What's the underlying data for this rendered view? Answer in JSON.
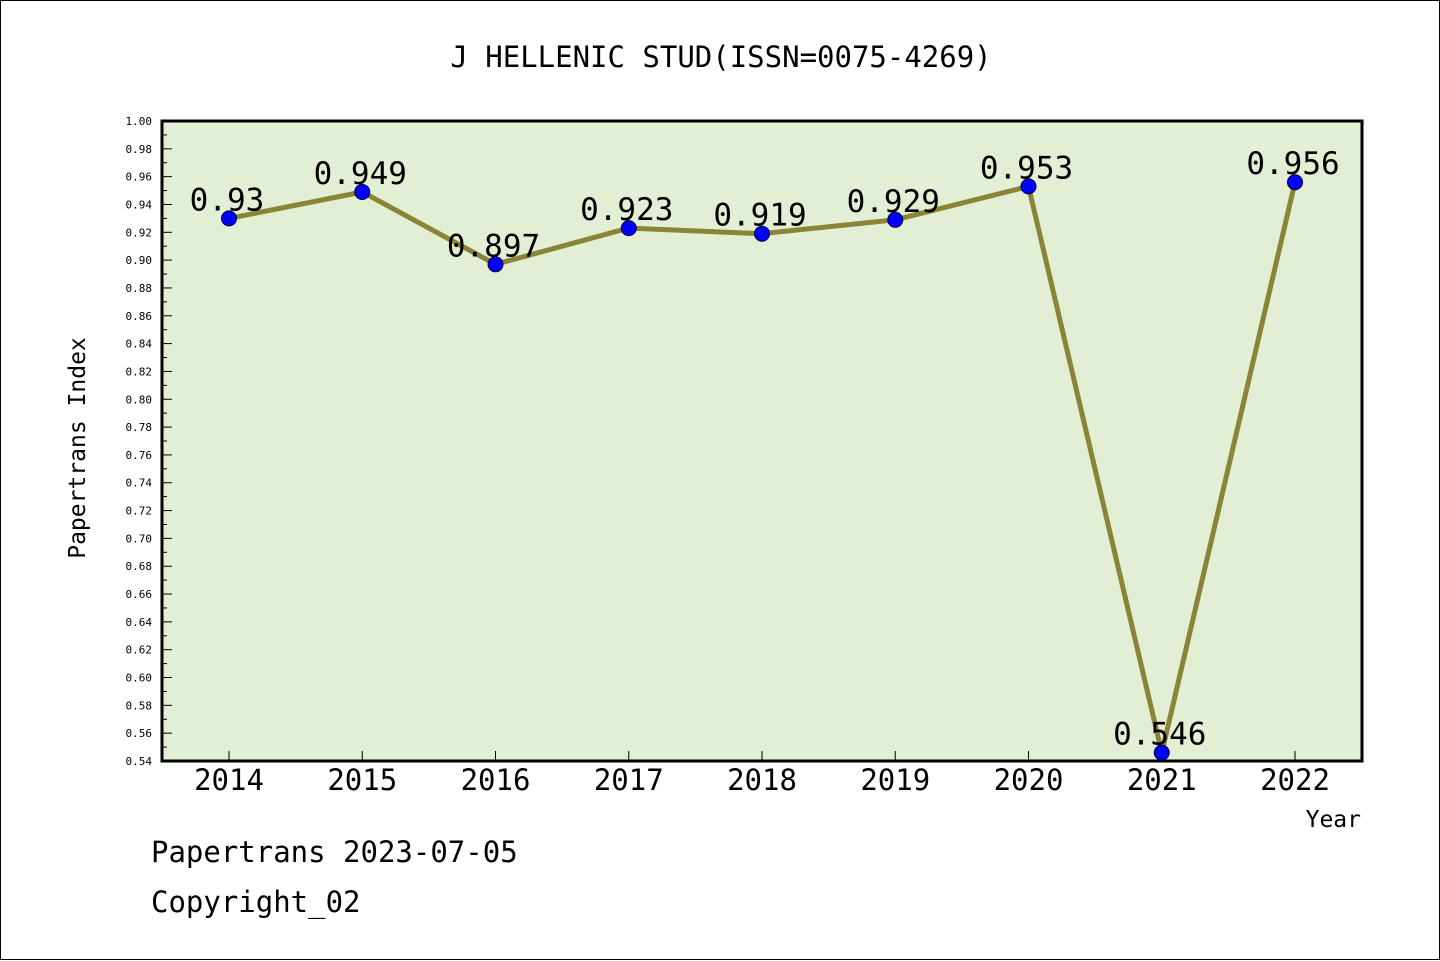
{
  "chart_data": {
    "type": "line",
    "title": "J HELLENIC STUD(ISSN=0075-4269)",
    "xlabel": "Year",
    "ylabel": "Papertrans Index",
    "categories": [
      "2014",
      "2015",
      "2016",
      "2017",
      "2018",
      "2019",
      "2020",
      "2021",
      "2022"
    ],
    "series": [
      {
        "values": [
          0.93,
          0.949,
          0.897,
          0.923,
          0.919,
          0.929,
          0.953,
          0.546,
          0.956
        ],
        "labels": [
          "0.93",
          "0.949",
          "0.897",
          "0.923",
          "0.919",
          "0.929",
          "0.953",
          "0.546",
          "0.956"
        ]
      }
    ],
    "ylim": [
      0.54,
      1.0
    ],
    "ytick_step": 0.02,
    "yticks": [
      "0.54",
      "0.56",
      "0.58",
      "0.60",
      "0.62",
      "0.64",
      "0.66",
      "0.68",
      "0.70",
      "0.72",
      "0.74",
      "0.76",
      "0.78",
      "0.80",
      "0.82",
      "0.84",
      "0.86",
      "0.88",
      "0.90",
      "0.92",
      "0.94",
      "0.96",
      "0.98",
      "1.00"
    ],
    "grid": false,
    "colors": {
      "plot_bg": "#e2efd4",
      "line": "#8b8436",
      "marker": "#0000ff",
      "axis": "#000000"
    }
  },
  "footer": {
    "line1": "Papertrans 2023-07-05",
    "line2": "Copyright_02"
  }
}
